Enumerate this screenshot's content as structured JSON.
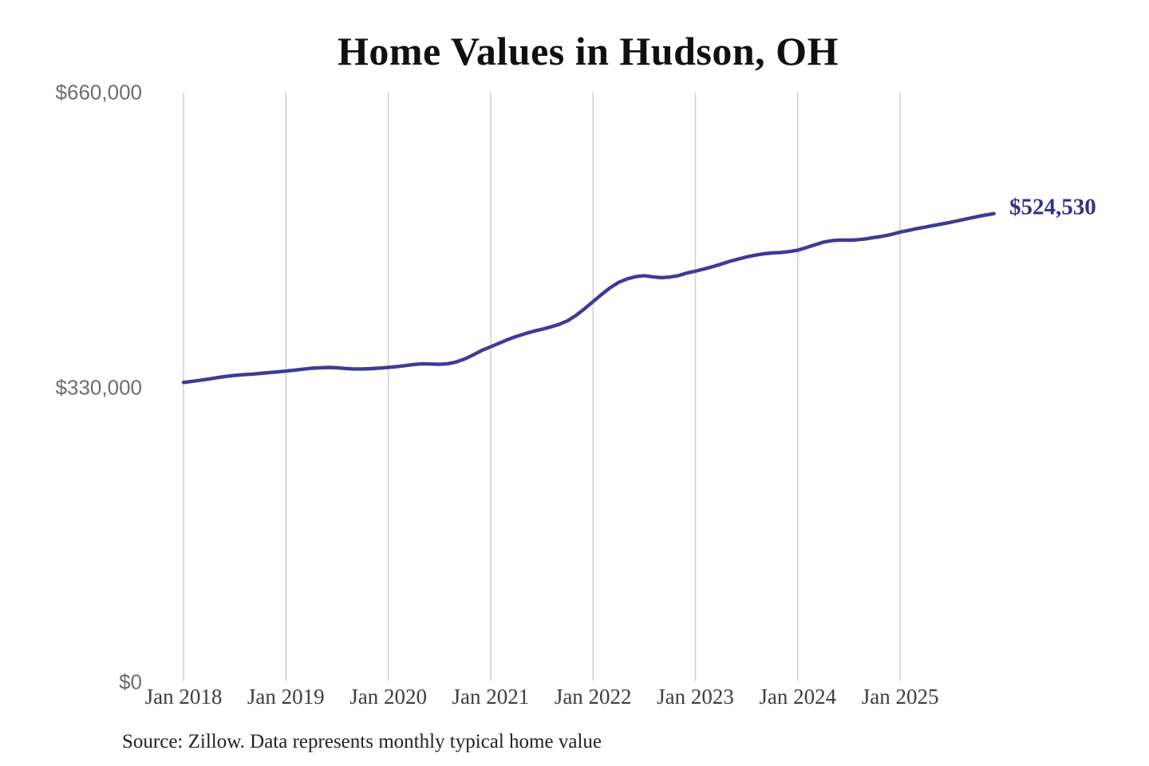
{
  "title": "Home Values in Hudson, OH",
  "end_label": "$524,530",
  "source_note": "Source: Zillow. Data represents monthly typical home value",
  "colors": {
    "line": "#3e3a96",
    "end_label_text": "#33308c",
    "grid": "#cccccc",
    "y_tick_text": "#6d6d6d",
    "x_tick_text": "#3e3e3e",
    "title_text": "#101010",
    "source_text": "#222222",
    "background": "#ffffff"
  },
  "chart_data": {
    "type": "line",
    "title": "Home Values in Hudson, OH",
    "xlabel": "",
    "ylabel": "",
    "x_tick_labels": [
      "Jan 2018",
      "Jan 2019",
      "Jan 2020",
      "Jan 2021",
      "Jan 2022",
      "Jan 2023",
      "Jan 2024",
      "Jan 2025"
    ],
    "y_tick_labels": [
      "$0",
      "$330,000",
      "$660,000"
    ],
    "y_ticks": [
      0,
      330000,
      660000
    ],
    "ylim": [
      0,
      660000
    ],
    "grid": "vertical-only",
    "legend": "none",
    "x_range": {
      "start": "Jan 2018",
      "end": "Dec 2025",
      "interval": "monthly"
    },
    "end_point_label": {
      "text": "$524,530",
      "value": 524530
    },
    "series": [
      {
        "name": "Monthly typical home value",
        "values": [
          335500,
          336800,
          338000,
          339500,
          341000,
          342300,
          343400,
          344200,
          344800,
          345600,
          346500,
          347300,
          348200,
          349300,
          350400,
          351400,
          352000,
          352300,
          352000,
          351200,
          350600,
          350600,
          351000,
          351600,
          352400,
          353200,
          354400,
          355600,
          356400,
          356200,
          355800,
          356500,
          358500,
          362000,
          366500,
          371500,
          375500,
          379500,
          383500,
          387000,
          390000,
          392800,
          395000,
          397500,
          400500,
          404500,
          410500,
          418000,
          426000,
          434000,
          441500,
          447500,
          451500,
          454000,
          455000,
          453800,
          452800,
          453500,
          455000,
          458000,
          460000,
          462500,
          465000,
          468000,
          471000,
          473500,
          476000,
          478000,
          479500,
          480500,
          481000,
          482000,
          483500,
          486500,
          489500,
          492500,
          494200,
          495000,
          494800,
          495200,
          496300,
          497800,
          499300,
          501200,
          503800,
          505800,
          507800,
          509600,
          511400,
          513200,
          515000,
          517000,
          519000,
          521000,
          522800,
          524530
        ]
      }
    ]
  }
}
